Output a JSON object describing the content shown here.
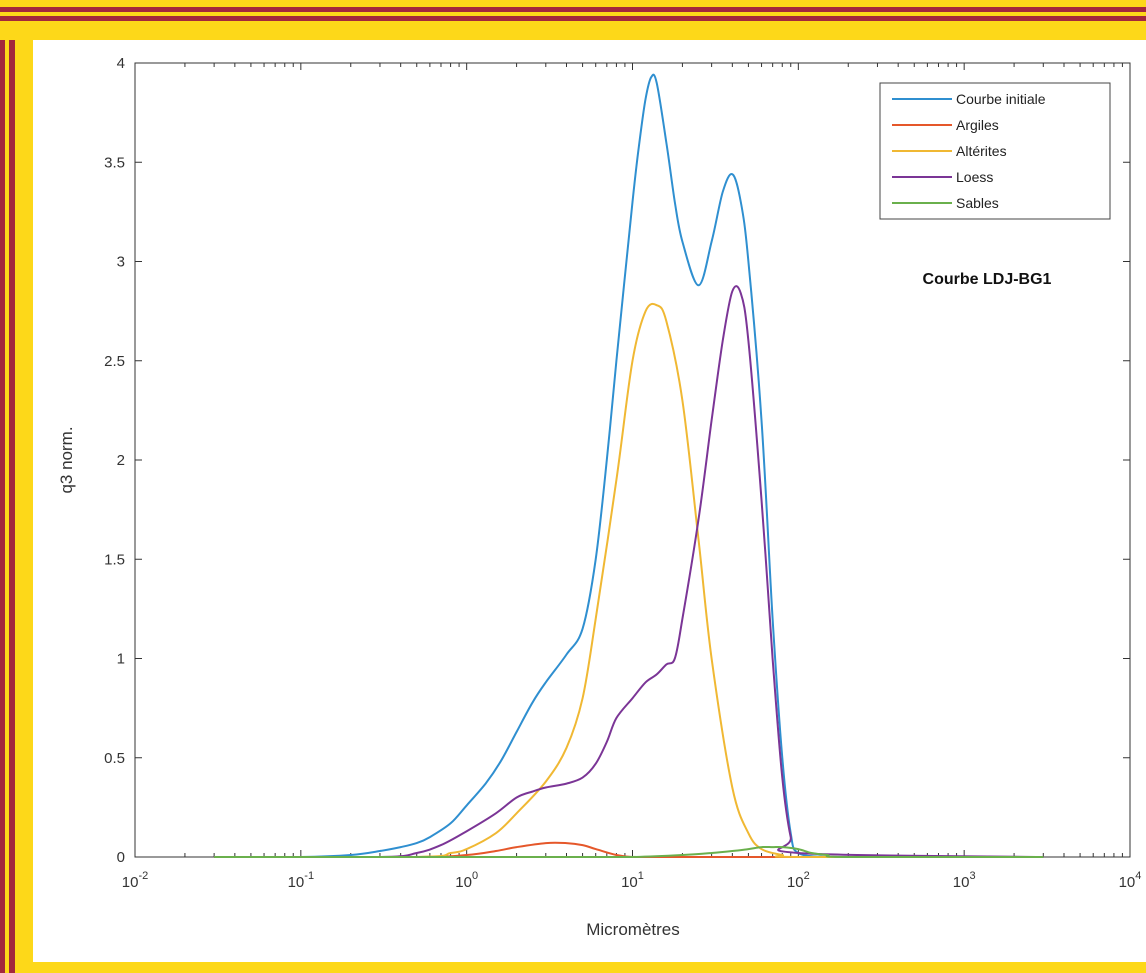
{
  "colors": {
    "border_yellow": "#fdd819",
    "border_red": "#a3283c",
    "plot_background": "#ffffff",
    "axis": "#333333"
  },
  "chart_data": {
    "type": "line",
    "title": "",
    "xlabel": "Micromètres",
    "ylabel": "q3 norm.",
    "x_scale": "log",
    "xlim": [
      0.01,
      10000
    ],
    "ylim": [
      0,
      4
    ],
    "grid": false,
    "legend_position": "top-right",
    "annotation": "Courbe LDJ-BG1",
    "x_ticks": [
      {
        "value": 0.01,
        "base": "10",
        "exp": "-2"
      },
      {
        "value": 0.1,
        "base": "10",
        "exp": "-1"
      },
      {
        "value": 1,
        "base": "10",
        "exp": "0"
      },
      {
        "value": 10,
        "base": "10",
        "exp": "1"
      },
      {
        "value": 100,
        "base": "10",
        "exp": "2"
      },
      {
        "value": 1000,
        "base": "10",
        "exp": "3"
      },
      {
        "value": 10000,
        "base": "10",
        "exp": "4"
      }
    ],
    "y_ticks": [
      {
        "value": 0,
        "label": "0"
      },
      {
        "value": 0.5,
        "label": "0.5"
      },
      {
        "value": 1,
        "label": "1"
      },
      {
        "value": 1.5,
        "label": "1.5"
      },
      {
        "value": 2,
        "label": "2"
      },
      {
        "value": 2.5,
        "label": "2.5"
      },
      {
        "value": 3,
        "label": "3"
      },
      {
        "value": 3.5,
        "label": "3.5"
      },
      {
        "value": 4,
        "label": "4"
      }
    ],
    "series": [
      {
        "name": "Courbe initiale",
        "color": "#2f8fd0",
        "x": [
          0.03,
          0.1,
          0.2,
          0.3,
          0.4,
          0.5,
          0.6,
          0.8,
          1.0,
          1.3,
          1.6,
          2.0,
          2.5,
          3.0,
          4.0,
          5.0,
          6.0,
          7.0,
          8.0,
          10,
          11,
          12,
          13,
          14,
          16,
          18,
          20,
          25,
          30,
          35,
          40,
          45,
          50,
          60,
          70,
          80,
          90,
          100,
          150,
          200,
          500,
          1000,
          3000
        ],
        "y": [
          0,
          0,
          0.01,
          0.03,
          0.05,
          0.07,
          0.1,
          0.17,
          0.26,
          0.37,
          0.48,
          0.63,
          0.78,
          0.88,
          1.02,
          1.15,
          1.5,
          2.0,
          2.5,
          3.3,
          3.6,
          3.82,
          3.93,
          3.9,
          3.6,
          3.3,
          3.1,
          2.88,
          3.1,
          3.35,
          3.44,
          3.3,
          3.0,
          2.2,
          1.2,
          0.5,
          0.12,
          0.02,
          0,
          0,
          0,
          0,
          0
        ]
      },
      {
        "name": "Argiles",
        "color": "#e5572a",
        "x": [
          0.03,
          0.5,
          1.0,
          1.5,
          2.0,
          3.0,
          4.0,
          5.0,
          6.0,
          8.0,
          10,
          15,
          100,
          3000
        ],
        "y": [
          0,
          0,
          0.01,
          0.03,
          0.05,
          0.07,
          0.07,
          0.06,
          0.04,
          0.01,
          0,
          0,
          0,
          0
        ]
      },
      {
        "name": "Altérites",
        "color": "#f0b833",
        "x": [
          0.03,
          0.5,
          0.8,
          1.0,
          1.5,
          2.0,
          3.0,
          4.0,
          5.0,
          6.0,
          8.0,
          10,
          12,
          14,
          16,
          20,
          25,
          30,
          40,
          50,
          60,
          80,
          100,
          3000
        ],
        "y": [
          0,
          0,
          0.02,
          0.04,
          0.12,
          0.22,
          0.38,
          0.55,
          0.8,
          1.2,
          1.9,
          2.5,
          2.75,
          2.78,
          2.7,
          2.3,
          1.6,
          1.0,
          0.35,
          0.12,
          0.04,
          0.01,
          0,
          0
        ]
      },
      {
        "name": "Loess",
        "color": "#7b3596",
        "x": [
          0.03,
          0.3,
          0.5,
          0.7,
          1.0,
          1.5,
          2.0,
          2.5,
          3.0,
          4.0,
          5.0,
          6.0,
          7.0,
          8.0,
          10,
          12,
          14,
          16,
          18,
          20,
          25,
          30,
          35,
          40,
          45,
          50,
          60,
          70,
          80,
          90,
          100,
          3000
        ],
        "y": [
          0,
          0,
          0.02,
          0.06,
          0.13,
          0.22,
          0.3,
          0.33,
          0.35,
          0.37,
          0.4,
          0.47,
          0.58,
          0.7,
          0.8,
          0.88,
          0.92,
          0.97,
          1.0,
          1.2,
          1.7,
          2.2,
          2.6,
          2.85,
          2.84,
          2.6,
          1.8,
          1.0,
          0.4,
          0.1,
          0.02,
          0
        ]
      },
      {
        "name": "Sables",
        "color": "#6ab04c",
        "x": [
          0.03,
          5,
          10,
          20,
          30,
          40,
          50,
          60,
          70,
          80,
          100,
          120,
          150,
          200,
          3000
        ],
        "y": [
          0,
          0,
          0,
          0.01,
          0.02,
          0.03,
          0.04,
          0.05,
          0.05,
          0.05,
          0.04,
          0.02,
          0.01,
          0,
          0
        ]
      }
    ]
  }
}
